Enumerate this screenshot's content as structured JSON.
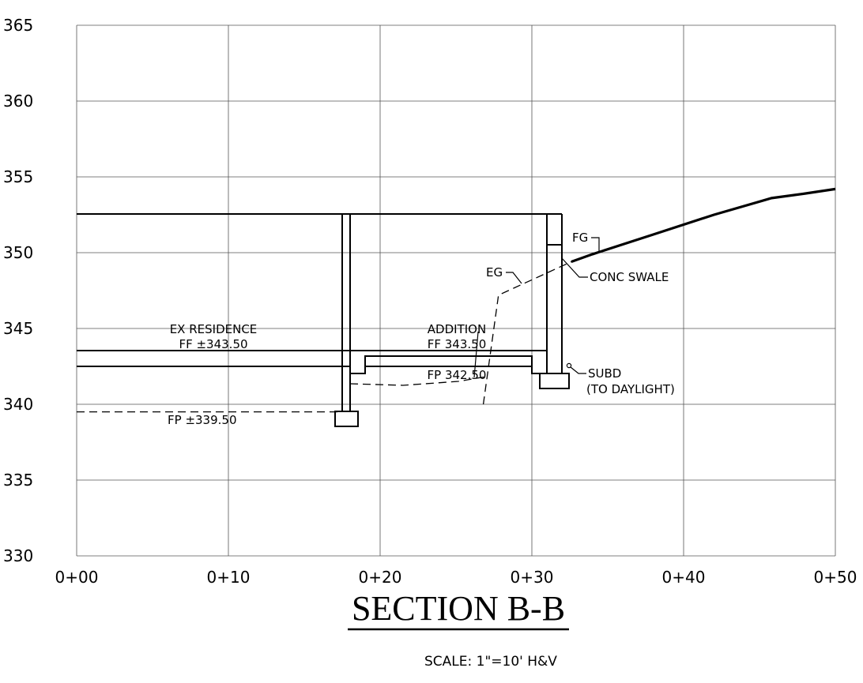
{
  "chart_data": {
    "type": "section",
    "x_ticks": [
      "0+00",
      "0+10",
      "0+20",
      "0+30",
      "0+40",
      "0+50"
    ],
    "y_ticks": [
      "365",
      "360",
      "355",
      "350",
      "345",
      "340",
      "335",
      "330"
    ],
    "xlim": [
      0,
      50
    ],
    "ylim": [
      330,
      365
    ],
    "grid": true,
    "finished_grade": {
      "x": [
        32.6,
        34,
        38,
        42,
        45.8,
        48,
        50
      ],
      "y": [
        349.4,
        349.9,
        351.2,
        352.5,
        353.6,
        353.9,
        354.2
      ]
    },
    "existing_grade": {
      "x": [
        26.8,
        27.8,
        32.6
      ],
      "y": [
        340.0,
        347.2,
        349.4
      ]
    },
    "existing_pad": {
      "x": [
        0,
        17.3
      ],
      "y": [
        339.5,
        339.5
      ]
    },
    "annotations": [
      {
        "id": "ex_residence",
        "text": "EX RESIDENCE"
      },
      {
        "id": "ex_ff",
        "text": "FF ±343.50"
      },
      {
        "id": "addition",
        "text": "ADDITION"
      },
      {
        "id": "add_ff",
        "text": "FF 343.50"
      },
      {
        "id": "add_fp",
        "text": "FP 342.50"
      },
      {
        "id": "ex_fp",
        "text": "FP ±339.50"
      },
      {
        "id": "eg",
        "text": "EG"
      },
      {
        "id": "fg",
        "text": "FG"
      },
      {
        "id": "conc_swale",
        "text": "CONC SWALE"
      },
      {
        "id": "subd",
        "text": "SUBD"
      },
      {
        "id": "daylight",
        "text": "(TO DAYLIGHT)"
      }
    ]
  },
  "title": "SECTION B-B",
  "scale_note": "SCALE: 1\"=10' H&V"
}
